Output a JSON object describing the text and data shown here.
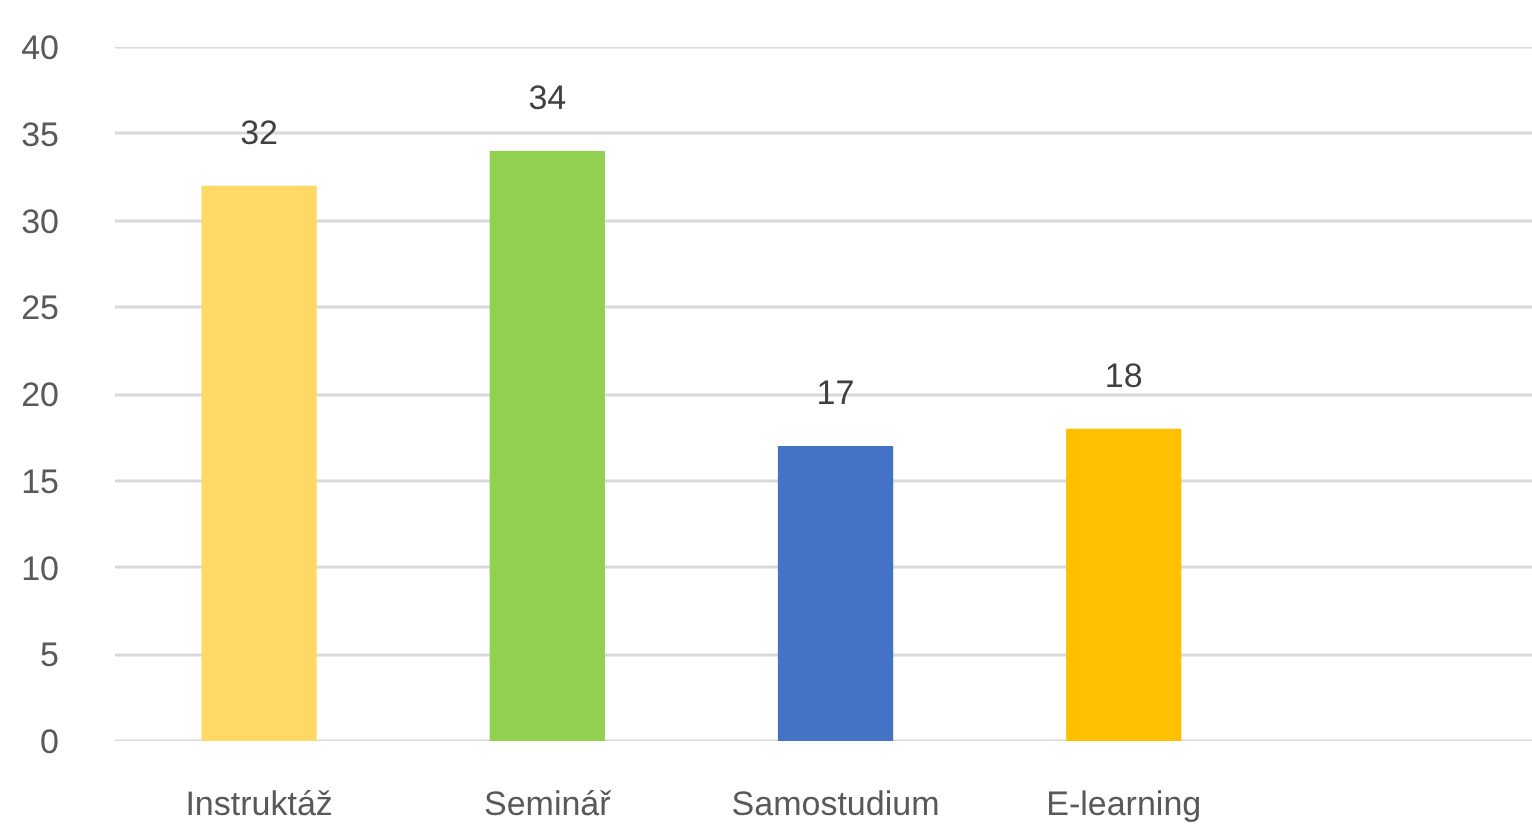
{
  "chart_data": {
    "type": "bar",
    "categories": [
      "Instruktáž",
      "Seminář",
      "Samostudium",
      "E-learning",
      null
    ],
    "values": [
      32,
      34,
      17,
      18,
      null
    ],
    "colors": [
      "#ffd966",
      "#92d050",
      "#4472c4",
      "#ffc000",
      null
    ],
    "ylim": [
      0,
      40
    ],
    "yticks": [
      0,
      5,
      10,
      15,
      20,
      25,
      30,
      35,
      40
    ],
    "grid": "y",
    "data_labels": true
  }
}
